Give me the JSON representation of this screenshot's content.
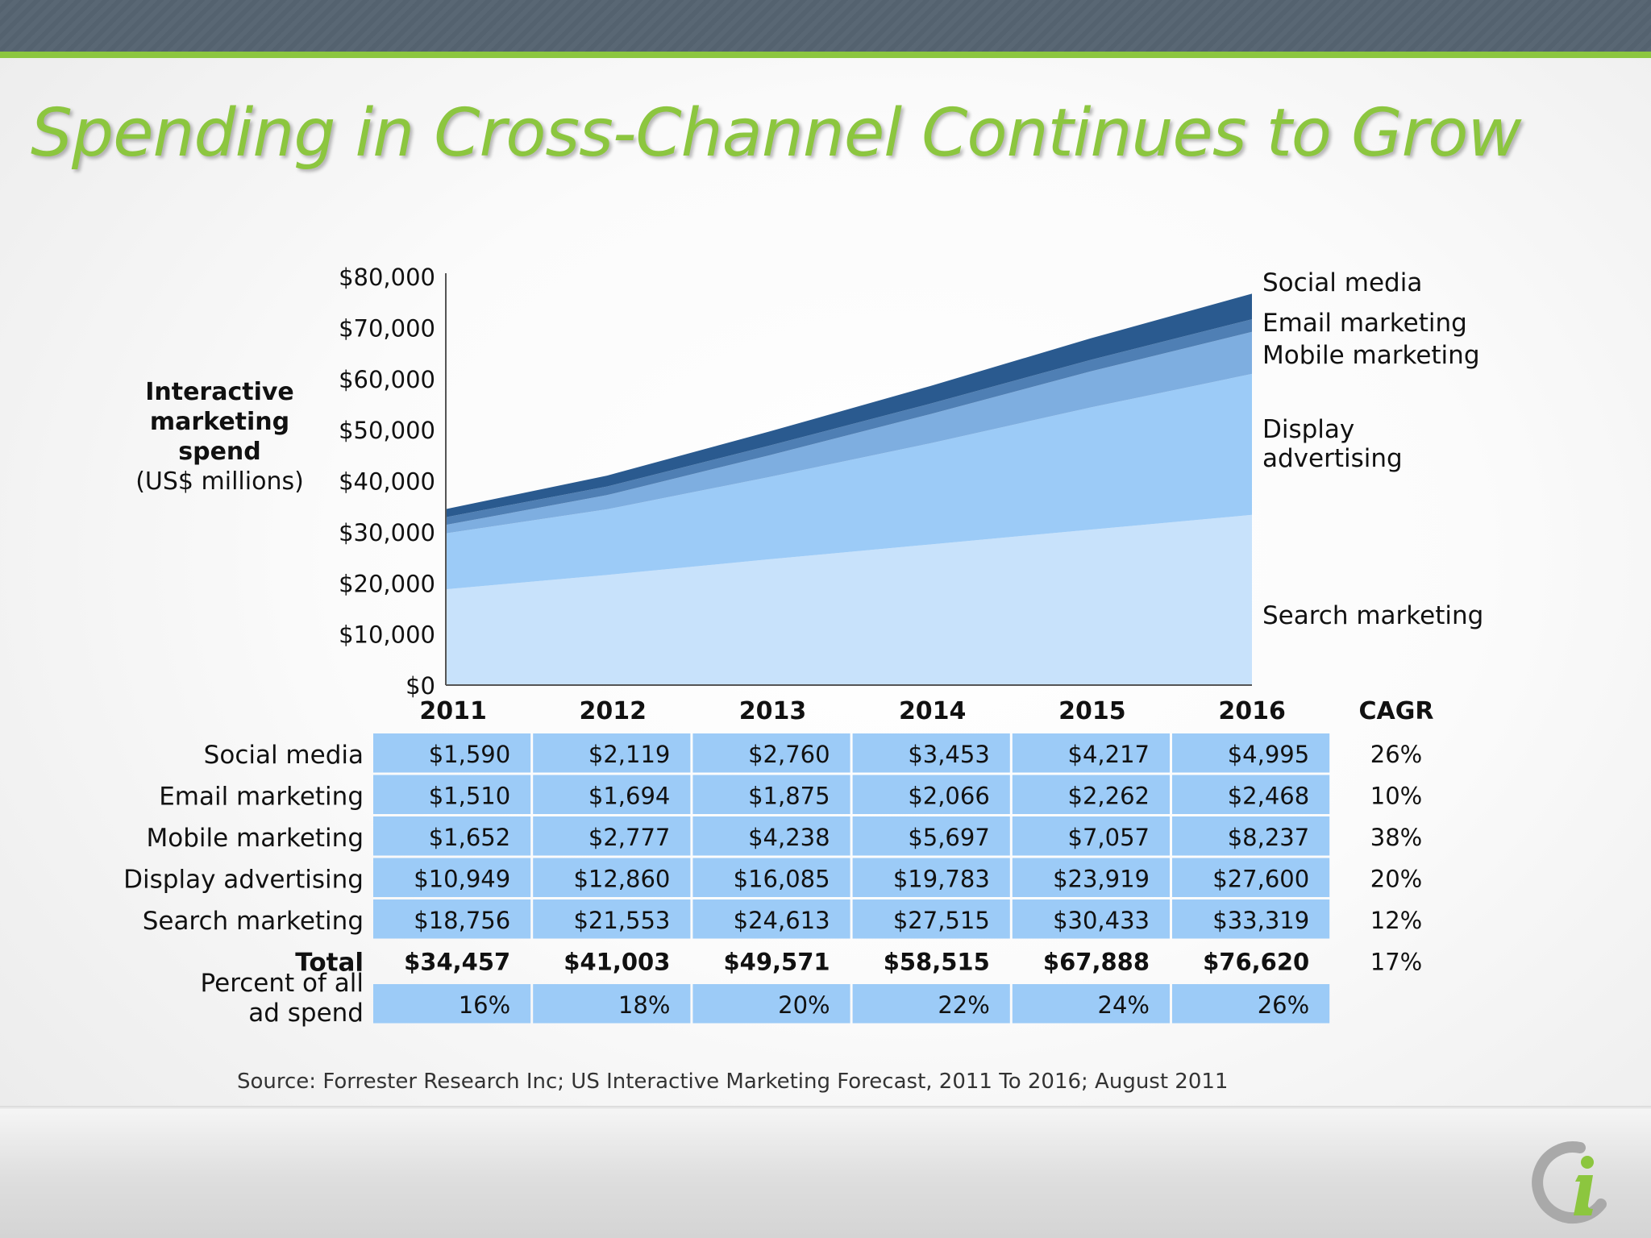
{
  "slide": {
    "title": "Spending in Cross-Channel Continues to Grow",
    "source": "Source: Forrester Research Inc; US Interactive Marketing Forecast, 2011 To 2016; August 2011"
  },
  "colors": {
    "header_bar": "#586673",
    "accent_green": "#8cc63f",
    "search": "#c8e2fb",
    "display": "#9ccbf7",
    "mobile": "#7eaee0",
    "email": "#4f7fb4",
    "social": "#2a5a8f",
    "table_cell": "#9ccbf7"
  },
  "chart_data": {
    "type": "area",
    "stacked": true,
    "y_axis_label": {
      "line1": "Interactive",
      "line2": "marketing",
      "line3": "spend",
      "unit": "(US$ millions)"
    },
    "ylim": [
      0,
      80000
    ],
    "y_ticks": [
      "$0",
      "$10,000",
      "$20,000",
      "$30,000",
      "$40,000",
      "$50,000",
      "$60,000",
      "$70,000",
      "$80,000"
    ],
    "x": [
      "2011",
      "2012",
      "2013",
      "2014",
      "2015",
      "2016"
    ],
    "series": [
      {
        "name": "Search marketing",
        "color": "#c8e2fb",
        "values": [
          18756,
          21553,
          24613,
          27515,
          30433,
          33319
        ]
      },
      {
        "name": "Display advertising",
        "label_lines": [
          "Display",
          "advertising"
        ],
        "color": "#9ccbf7",
        "values": [
          10949,
          12860,
          16085,
          19783,
          23919,
          27600
        ]
      },
      {
        "name": "Mobile marketing",
        "color": "#7eaee0",
        "values": [
          1652,
          2777,
          4238,
          5697,
          7057,
          8237
        ]
      },
      {
        "name": "Email marketing",
        "color": "#4f7fb4",
        "values": [
          1510,
          1694,
          1875,
          2066,
          2262,
          2468
        ]
      },
      {
        "name": "Social media",
        "color": "#2a5a8f",
        "values": [
          1590,
          2119,
          2760,
          3453,
          4217,
          4995
        ]
      }
    ],
    "table": {
      "cagr_header": "CAGR",
      "rows": [
        {
          "label": "Social media",
          "cells": [
            "$1,590",
            "$2,119",
            "$2,760",
            "$3,453",
            "$4,217",
            "$4,995"
          ],
          "cagr": "26%"
        },
        {
          "label": "Email marketing",
          "cells": [
            "$1,510",
            "$1,694",
            "$1,875",
            "$2,066",
            "$2,262",
            "$2,468"
          ],
          "cagr": "10%"
        },
        {
          "label": "Mobile marketing",
          "cells": [
            "$1,652",
            "$2,777",
            "$4,238",
            "$5,697",
            "$7,057",
            "$8,237"
          ],
          "cagr": "38%"
        },
        {
          "label": "Display advertising",
          "cells": [
            "$10,949",
            "$12,860",
            "$16,085",
            "$19,783",
            "$23,919",
            "$27,600"
          ],
          "cagr": "20%"
        },
        {
          "label": "Search marketing",
          "cells": [
            "$18,756",
            "$21,553",
            "$24,613",
            "$27,515",
            "$30,433",
            "$33,319"
          ],
          "cagr": "12%"
        }
      ],
      "total": {
        "label": "Total",
        "cells": [
          "$34,457",
          "$41,003",
          "$49,571",
          "$58,515",
          "$67,888",
          "$76,620"
        ],
        "cagr": "17%"
      },
      "percent": {
        "label_lines": [
          "Percent of all",
          "ad spend"
        ],
        "cells": [
          "16%",
          "18%",
          "20%",
          "22%",
          "24%",
          "26%"
        ]
      }
    }
  }
}
